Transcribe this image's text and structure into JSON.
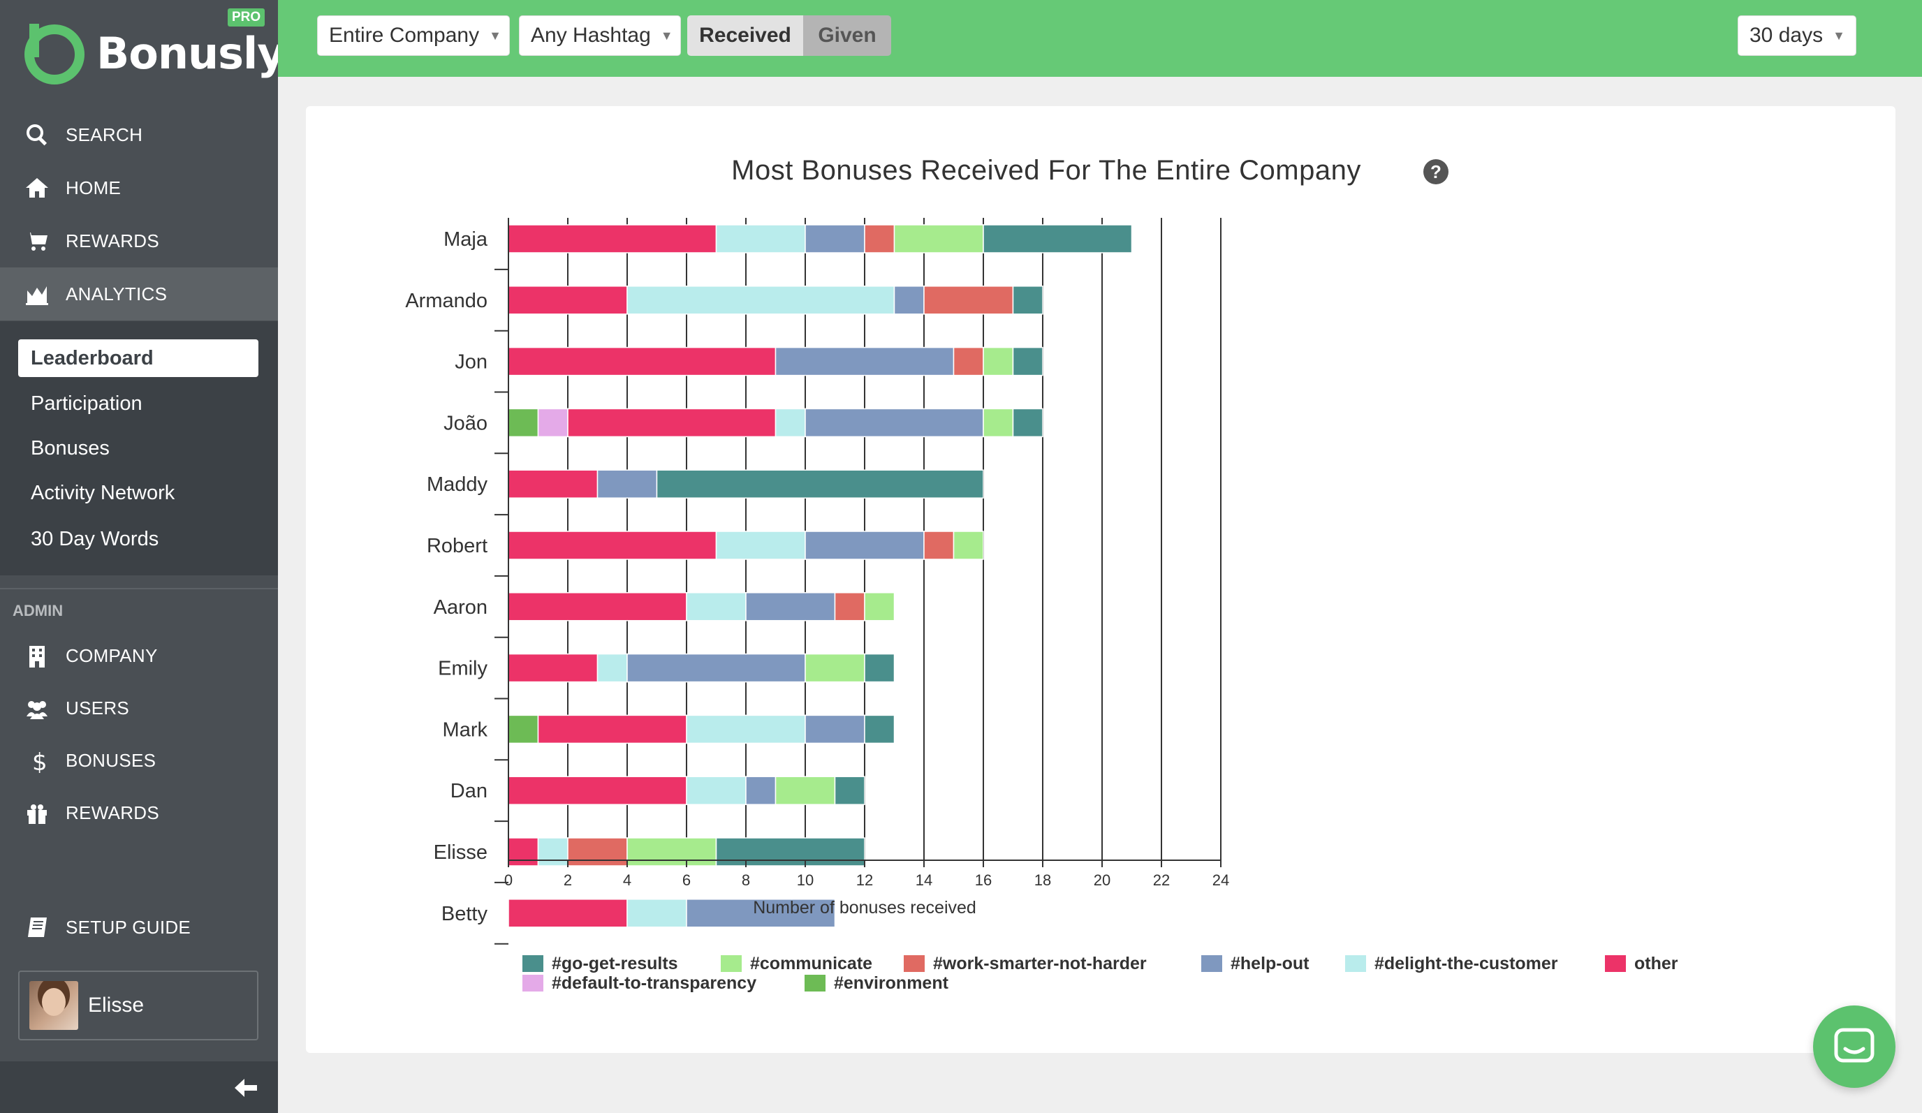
{
  "app": {
    "name": "Bonusly",
    "badge": "PRO"
  },
  "colors": {
    "brand": "#5cc26e",
    "sidebar": "#4a4f54"
  },
  "sidebar": {
    "nav": [
      {
        "label": "SEARCH",
        "icon": "search-icon"
      },
      {
        "label": "HOME",
        "icon": "home-icon"
      },
      {
        "label": "REWARDS",
        "icon": "cart-icon"
      },
      {
        "label": "ANALYTICS",
        "icon": "chart-icon"
      }
    ],
    "subnav": [
      "Leaderboard",
      "Participation",
      "Bonuses",
      "Activity Network",
      "30 Day Words"
    ],
    "admin_label": "ADMIN",
    "admin_nav": [
      {
        "label": "COMPANY",
        "icon": "building-icon"
      },
      {
        "label": "USERS",
        "icon": "users-icon"
      },
      {
        "label": "BONUSES",
        "icon": "dollar-icon"
      },
      {
        "label": "REWARDS",
        "icon": "gift-icon"
      }
    ],
    "setup_guide": "SETUP GUIDE",
    "user": "Elisse"
  },
  "topbar": {
    "scope": "Entire Company",
    "hashtag": "Any Hashtag",
    "toggle_on": "Received",
    "toggle_off": "Given",
    "period": "30 days"
  },
  "chart_data": {
    "type": "bar",
    "orientation": "horizontal",
    "stacked": true,
    "title": "Most Bonuses Received For The Entire Company",
    "xlabel": "Number of bonuses received",
    "ylabel": "",
    "xlim": [
      0,
      24
    ],
    "xticks": [
      0,
      2,
      4,
      6,
      8,
      10,
      12,
      14,
      16,
      18,
      20,
      22,
      24
    ],
    "grid": "vertical",
    "legend_position": "bottom",
    "categories": [
      "Maja",
      "Armando",
      "Jon",
      "João",
      "Maddy",
      "Robert",
      "Aaron",
      "Emily",
      "Mark",
      "Dan",
      "Elisse",
      "Betty"
    ],
    "stack_order": [
      "#environment",
      "#default-to-transparency",
      "other",
      "#delight-the-customer",
      "#help-out",
      "#work-smarter-not-harder",
      "#communicate",
      "#go-get-results"
    ],
    "series": [
      {
        "name": "#go-get-results",
        "color": "#4a8f8c",
        "values": [
          5,
          1,
          1,
          1,
          11,
          0,
          0,
          1,
          1,
          1,
          5,
          0
        ]
      },
      {
        "name": "#communicate",
        "color": "#a6eb8d",
        "values": [
          3,
          0,
          1,
          1,
          0,
          1,
          1,
          2,
          0,
          2,
          3,
          0
        ]
      },
      {
        "name": "#work-smarter-not-harder",
        "color": "#e06a62",
        "values": [
          1,
          3,
          1,
          0,
          0,
          1,
          1,
          0,
          0,
          0,
          2,
          0
        ]
      },
      {
        "name": "#help-out",
        "color": "#7f98bf",
        "values": [
          2,
          1,
          6,
          6,
          2,
          4,
          3,
          6,
          2,
          1,
          0,
          5
        ]
      },
      {
        "name": "#delight-the-customer",
        "color": "#b9ecec",
        "values": [
          3,
          9,
          0,
          1,
          0,
          3,
          2,
          1,
          4,
          2,
          1,
          2
        ]
      },
      {
        "name": "other",
        "color": "#ec3368",
        "values": [
          7,
          4,
          9,
          7,
          3,
          7,
          6,
          3,
          5,
          6,
          1,
          4
        ]
      },
      {
        "name": "#default-to-transparency",
        "color": "#e4aae8",
        "values": [
          0,
          0,
          0,
          1,
          0,
          0,
          0,
          0,
          0,
          0,
          0,
          0
        ]
      },
      {
        "name": "#environment",
        "color": "#6dbb55",
        "values": [
          0,
          0,
          0,
          1,
          0,
          0,
          0,
          0,
          1,
          0,
          0,
          0
        ]
      }
    ]
  }
}
